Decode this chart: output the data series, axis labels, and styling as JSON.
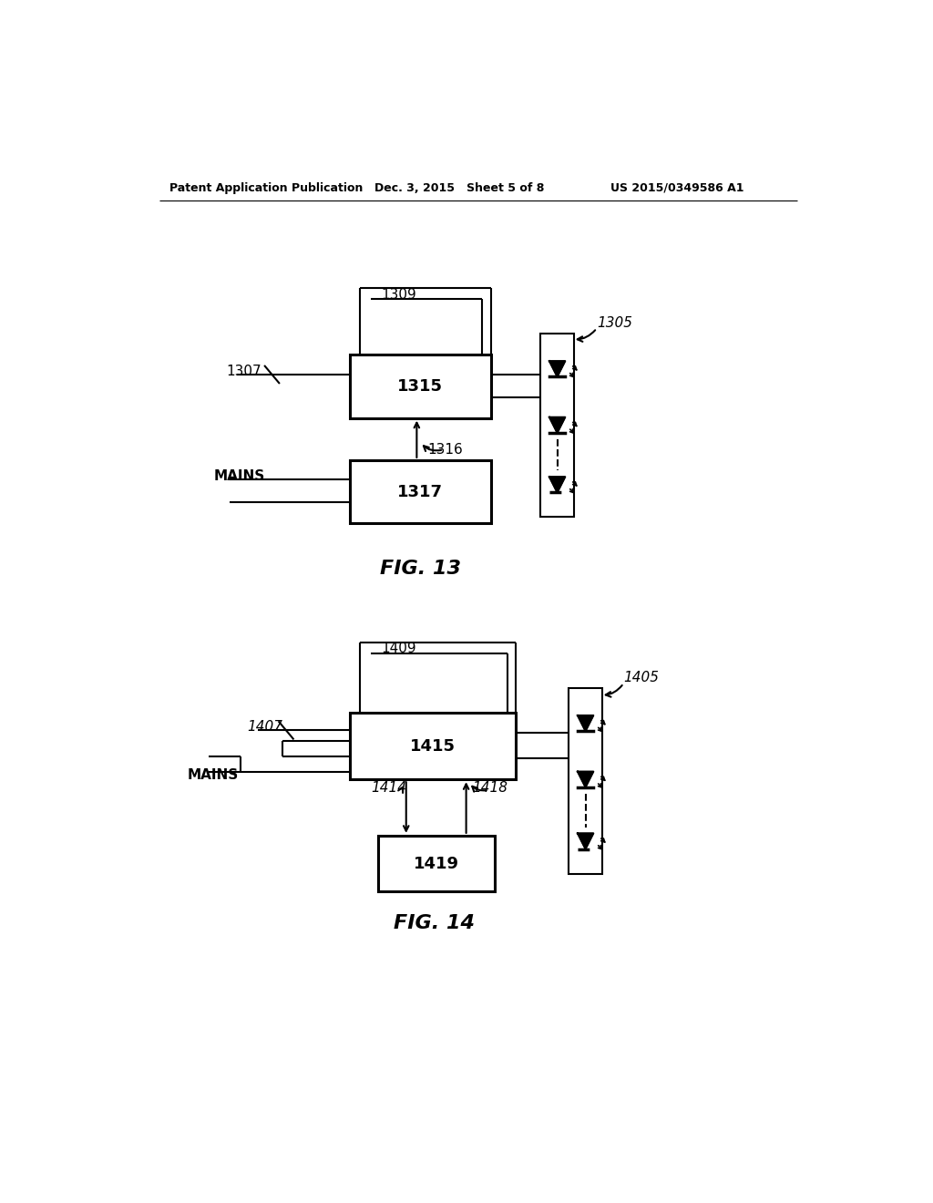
{
  "bg_color": "#ffffff",
  "header_left": "Patent Application Publication",
  "header_mid": "Dec. 3, 2015   Sheet 5 of 8",
  "header_right": "US 2015/0349586 A1",
  "fig13_label": "FIG. 13",
  "fig14_label": "FIG. 14",
  "box1315_label": "1315",
  "box1317_label": "1317",
  "box1415_label": "1415",
  "box1419_label": "1419",
  "label_1309": "1309",
  "label_1307": "1307",
  "label_1316": "1316",
  "label_1305": "1305",
  "label_1409": "1409",
  "label_1407": "1407",
  "label_1414": "1414",
  "label_1418": "1418",
  "label_1405": "1405",
  "label_mains1": "MAINS",
  "label_mains2": "MAINS"
}
